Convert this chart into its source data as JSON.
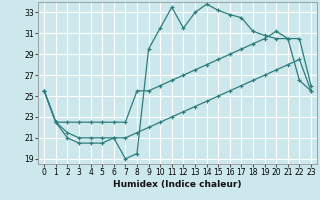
{
  "xlabel": "Humidex (Indice chaleur)",
  "bg_color": "#cde8ec",
  "grid_color": "#ffffff",
  "line_color": "#2d7d7d",
  "xlim": [
    -0.5,
    23.5
  ],
  "ylim": [
    18.5,
    34.0
  ],
  "xticks": [
    0,
    1,
    2,
    3,
    4,
    5,
    6,
    7,
    8,
    9,
    10,
    11,
    12,
    13,
    14,
    15,
    16,
    17,
    18,
    19,
    20,
    21,
    22,
    23
  ],
  "yticks": [
    19,
    21,
    23,
    25,
    27,
    29,
    31,
    33
  ],
  "series1_x": [
    0,
    1,
    2,
    3,
    4,
    5,
    6,
    7,
    8,
    9,
    10,
    11,
    12,
    13,
    14,
    15,
    16,
    17,
    18,
    19,
    20,
    21,
    22,
    23
  ],
  "series1_y": [
    25.5,
    22.5,
    21.0,
    20.5,
    20.5,
    20.5,
    21.0,
    19.0,
    19.5,
    29.5,
    31.5,
    33.5,
    31.5,
    33.0,
    33.8,
    33.2,
    32.8,
    32.5,
    31.2,
    30.8,
    30.5,
    30.5,
    26.5,
    25.5
  ],
  "series2_x": [
    0,
    1,
    2,
    3,
    4,
    5,
    6,
    7,
    8,
    9,
    10,
    11,
    12,
    13,
    14,
    15,
    16,
    17,
    18,
    19,
    20,
    21,
    22,
    23
  ],
  "series2_y": [
    25.5,
    22.5,
    22.5,
    22.5,
    22.5,
    22.5,
    22.5,
    22.5,
    25.5,
    25.5,
    26.0,
    26.5,
    27.0,
    27.5,
    28.0,
    28.5,
    29.0,
    29.5,
    30.0,
    30.5,
    31.2,
    30.5,
    30.5,
    26.0
  ],
  "series3_x": [
    0,
    1,
    2,
    3,
    4,
    5,
    6,
    7,
    8,
    9,
    10,
    11,
    12,
    13,
    14,
    15,
    16,
    17,
    18,
    19,
    20,
    21,
    22,
    23
  ],
  "series3_y": [
    25.5,
    22.5,
    21.5,
    21.0,
    21.0,
    21.0,
    21.0,
    21.0,
    21.5,
    22.0,
    22.5,
    23.0,
    23.5,
    24.0,
    24.5,
    25.0,
    25.5,
    26.0,
    26.5,
    27.0,
    27.5,
    28.0,
    28.5,
    25.5
  ]
}
